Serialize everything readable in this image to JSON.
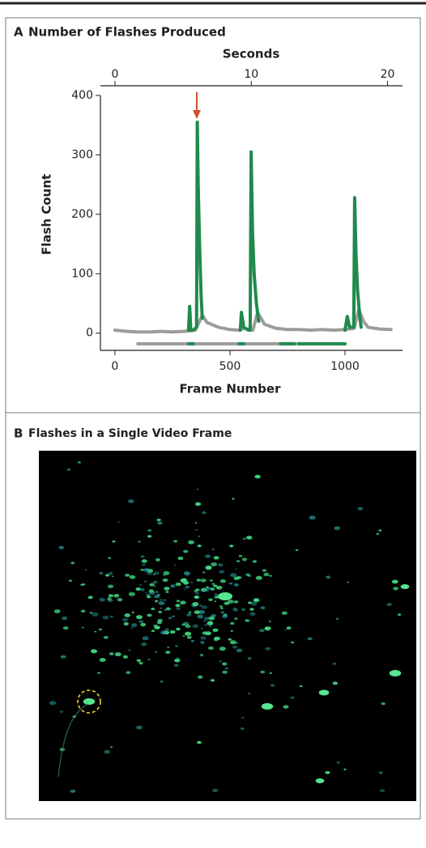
{
  "chart_data": {
    "type": "line",
    "panel_label": "A",
    "title": "Number of Flashes Produced",
    "x_label": "Frame Number",
    "x2_label": "Seconds",
    "y_label": "Flash Count",
    "xlim": [
      -63,
      1250
    ],
    "xticks": [
      0,
      500,
      1000
    ],
    "x2lim": [
      -1.07,
      21.1
    ],
    "x2ticks": [
      0,
      10,
      20
    ],
    "ylim": [
      -29,
      400
    ],
    "yticks": [
      0,
      100,
      200,
      300,
      400
    ],
    "series": [
      {
        "color": "#9c9c9c",
        "x": [
          0,
          50,
          100,
          150,
          200,
          250,
          300,
          330,
          350,
          380,
          400,
          450,
          500,
          540,
          560,
          600,
          620,
          650,
          700,
          750,
          800,
          850,
          900,
          950,
          1000,
          1040,
          1060,
          1080,
          1100,
          1150,
          1200
        ],
        "values": [
          5,
          3,
          2,
          2,
          3,
          2,
          3,
          4,
          5,
          30,
          18,
          10,
          6,
          5,
          8,
          5,
          35,
          15,
          8,
          6,
          6,
          5,
          6,
          5,
          6,
          8,
          40,
          20,
          10,
          7,
          6
        ]
      },
      {
        "color": "#1f8a4c",
        "x": [
          320,
          325,
          330,
          340,
          355,
          358,
          362,
          368,
          375,
          380,
          null,
          545,
          550,
          560,
          580,
          588,
          592,
          598,
          605,
          615,
          625,
          null,
          1000,
          1010,
          1020,
          1038,
          1042,
          1048,
          1055,
          1065,
          1070
        ],
        "values": [
          5,
          45,
          5,
          5,
          10,
          355,
          250,
          150,
          60,
          25,
          null,
          5,
          35,
          10,
          5,
          5,
          305,
          170,
          100,
          50,
          20,
          null,
          5,
          28,
          10,
          10,
          228,
          130,
          70,
          25,
          10
        ]
      },
      {
        "color": "#9c9c9c",
        "x": [
          100,
          1000
        ],
        "values": [
          -18,
          -18
        ]
      },
      {
        "color": "#1f8a4c",
        "x": [
          320,
          340,
          null,
          540,
          560,
          null,
          720,
          780,
          null,
          800,
          1000
        ],
        "values": [
          -18,
          -18,
          null,
          -18,
          -18,
          null,
          -18,
          -18,
          null,
          -18,
          -18
        ]
      }
    ]
  },
  "panel_b": {
    "label": "B",
    "title": "Flashes in a Single Video Frame"
  }
}
